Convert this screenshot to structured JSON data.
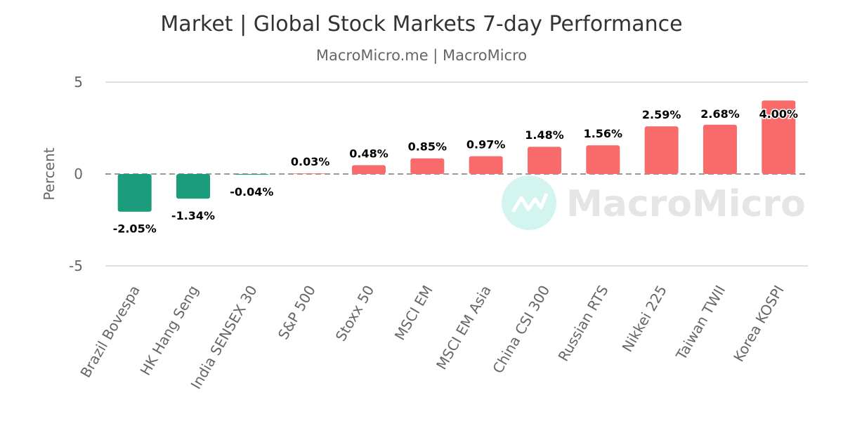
{
  "chart_data": {
    "type": "bar",
    "title": "Market | Global Stock Markets 7-day Performance",
    "subtitle": "MacroMicro.me | MacroMicro",
    "ylabel": "Percent",
    "xlabel": "",
    "ylim": [
      -5,
      5
    ],
    "yticks": [
      "5",
      "0",
      "-5"
    ],
    "grid": true,
    "categories": [
      "Brazil Bovespa",
      "HK Hang Seng",
      "India SENSEX 30",
      "S&P 500",
      "Stoxx 50",
      "MSCI EM",
      "MSCI EM Asia",
      "China CSI 300",
      "Russian RTS",
      "Nikkei 225",
      "Taiwan TWII",
      "Korea KOSPI"
    ],
    "values": [
      -2.05,
      -1.34,
      -0.04,
      0.03,
      0.48,
      0.85,
      0.97,
      1.48,
      1.56,
      2.59,
      2.68,
      4.0
    ],
    "data_labels": [
      "-2.05%",
      "-1.34%",
      "-0.04%",
      "0.03%",
      "0.48%",
      "0.85%",
      "0.97%",
      "1.48%",
      "1.56%",
      "2.59%",
      "2.68%",
      "4.00%"
    ],
    "colors": {
      "positive": "#f96b6b",
      "negative": "#1a9c7d"
    },
    "watermark": "MacroMicro"
  }
}
